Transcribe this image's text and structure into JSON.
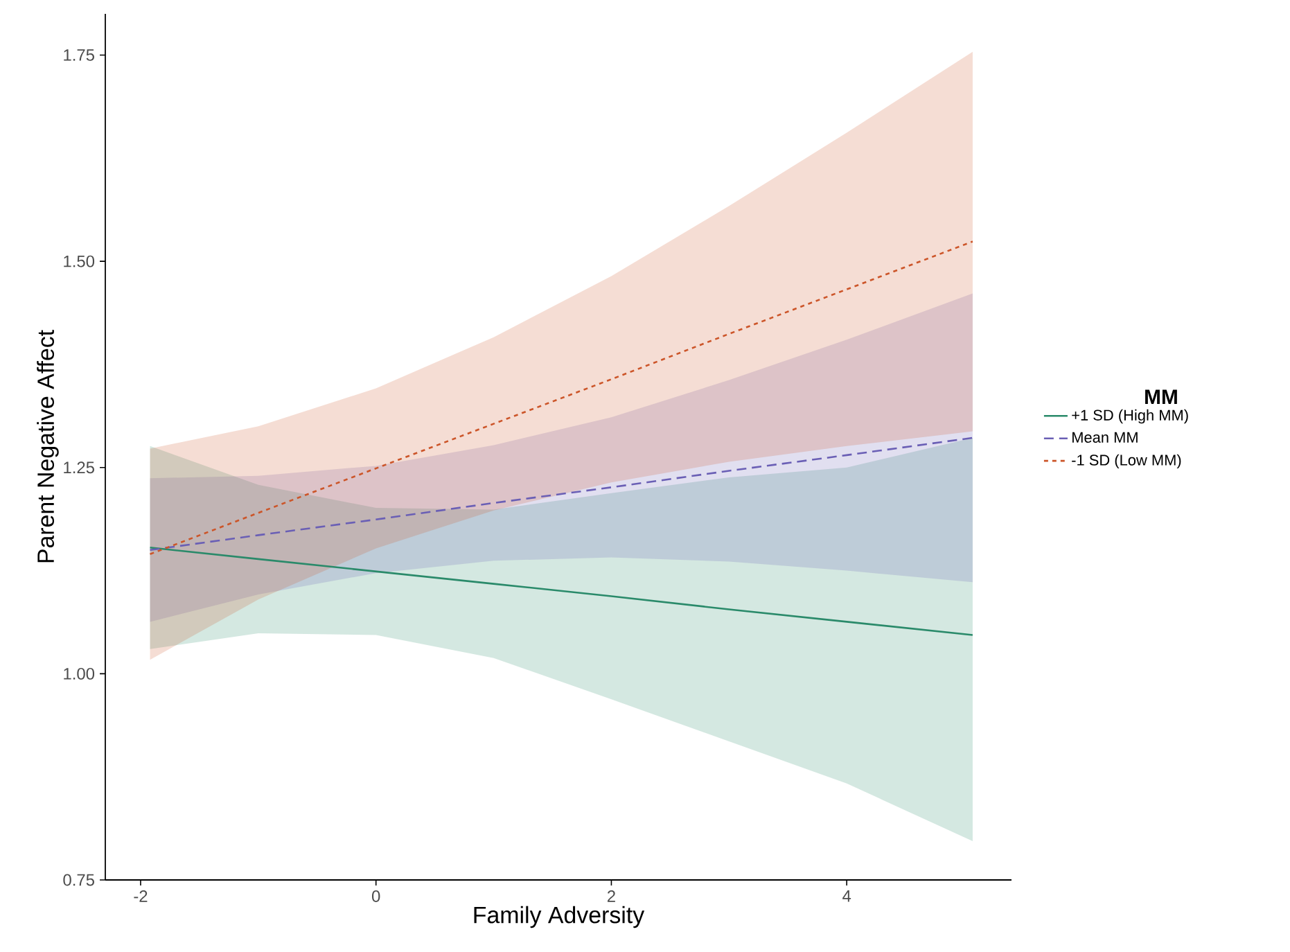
{
  "chart_data": {
    "type": "line",
    "xlabel": "Family Adversity",
    "ylabel": "Parent Negative Affect",
    "legend_title": "MM",
    "legend": "right",
    "grid": false,
    "marker": "none",
    "xlim": [
      -2.3,
      5.4
    ],
    "ylim": [
      0.75,
      1.8
    ],
    "xticks": [
      -2,
      0,
      2,
      4
    ],
    "yticks": [
      {
        "value": 0.75,
        "label": "0.75"
      },
      {
        "value": 1.0,
        "label": "1.00"
      },
      {
        "value": 1.25,
        "label": "1.25"
      },
      {
        "value": 1.5,
        "label": "1.50"
      },
      {
        "value": 1.75,
        "label": "1.75"
      }
    ],
    "series": [
      {
        "name": "+1 SD (High MM)",
        "color": "#2a8a6a",
        "line_style": "solid",
        "x": [
          -1.92,
          -1,
          0,
          1,
          2,
          3,
          4,
          5.07
        ],
        "values": [
          1.153,
          1.139,
          1.124,
          1.109,
          1.094,
          1.078,
          1.063,
          1.047
        ],
        "lower": [
          1.03,
          1.049,
          1.047,
          1.019,
          0.969,
          0.918,
          0.867,
          0.797
        ],
        "upper": [
          1.276,
          1.229,
          1.201,
          1.199,
          1.219,
          1.238,
          1.25,
          1.286
        ]
      },
      {
        "name": "Mean MM",
        "color": "#6a5fb5",
        "line_style": "dashed",
        "x": [
          -1.92,
          -1,
          0,
          1,
          2,
          3,
          4,
          5.07
        ],
        "values": [
          1.15,
          1.168,
          1.187,
          1.207,
          1.226,
          1.246,
          1.265,
          1.286
        ],
        "lower": [
          1.063,
          1.096,
          1.122,
          1.137,
          1.141,
          1.136,
          1.125,
          1.111
        ],
        "upper": [
          1.237,
          1.24,
          1.252,
          1.277,
          1.311,
          1.356,
          1.405,
          1.461
        ]
      },
      {
        "name": "-1 SD (Low MM)",
        "color": "#cc5529",
        "line_style": "dotted",
        "x": [
          -1.92,
          -1,
          0,
          1,
          2,
          3,
          4,
          5.07
        ],
        "values": [
          1.145,
          1.195,
          1.249,
          1.303,
          1.357,
          1.412,
          1.466,
          1.524
        ],
        "lower": [
          1.017,
          1.09,
          1.152,
          1.198,
          1.232,
          1.257,
          1.276,
          1.294
        ],
        "upper": [
          1.273,
          1.3,
          1.346,
          1.408,
          1.482,
          1.567,
          1.656,
          1.754
        ]
      }
    ]
  }
}
